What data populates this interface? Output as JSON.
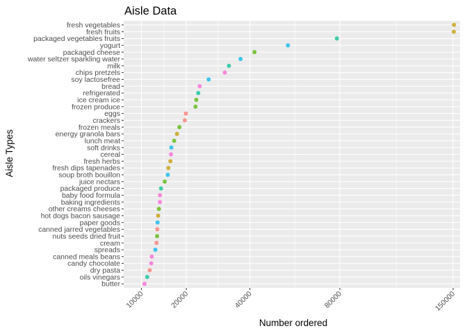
{
  "chart_data": {
    "type": "scatter",
    "title": "Aisle Data",
    "xlabel": "Number ordered",
    "ylabel": "Aisle Types",
    "x_scale": "sqrt",
    "x_ticks": [
      10000,
      20000,
      40000,
      80000,
      150000
    ],
    "xlim": [
      7000,
      155000
    ],
    "grid": true,
    "legend": "none",
    "points": [
      {
        "aisle": "fresh vegetables",
        "value": 150609,
        "color": "#C49A00"
      },
      {
        "aisle": "fresh fruits",
        "value": 150473,
        "color": "#C49A00"
      },
      {
        "aisle": "packaged vegetables fruits",
        "value": 78493,
        "color": "#00C094"
      },
      {
        "aisle": "yogurt",
        "value": 55240,
        "color": "#00B6EB"
      },
      {
        "aisle": "packaged cheese",
        "value": 41699,
        "color": "#53B400"
      },
      {
        "aisle": "water seltzer sparkling water",
        "value": 36617,
        "color": "#00B6EB"
      },
      {
        "aisle": "milk",
        "value": 32644,
        "color": "#00C094"
      },
      {
        "aisle": "chips pretzels",
        "value": 31269,
        "color": "#FB61D7"
      },
      {
        "aisle": "soy lactosefree",
        "value": 26240,
        "color": "#00B6EB"
      },
      {
        "aisle": "bread",
        "value": 23635,
        "color": "#FB61D7"
      },
      {
        "aisle": "refrigerated",
        "value": 23228,
        "color": "#00C094"
      },
      {
        "aisle": "ice cream ice",
        "value": 22676,
        "color": "#53B400"
      },
      {
        "aisle": "frozen produce",
        "value": 22453,
        "color": "#53B400"
      },
      {
        "aisle": "eggs",
        "value": 19875,
        "color": "#F8766D"
      },
      {
        "aisle": "crackers",
        "value": 19592,
        "color": "#F8766D"
      },
      {
        "aisle": "frozen meals",
        "value": 18221,
        "color": "#53B400"
      },
      {
        "aisle": "energy granola bars",
        "value": 17632,
        "color": "#C49A00"
      },
      {
        "aisle": "lunch meat",
        "value": 16957,
        "color": "#53B400"
      },
      {
        "aisle": "soft drinks",
        "value": 16279,
        "color": "#00B6EB"
      },
      {
        "aisle": "cereal",
        "value": 16201,
        "color": "#FB61D7"
      },
      {
        "aisle": "fresh herbs",
        "value": 16052,
        "color": "#C49A00"
      },
      {
        "aisle": "fresh dips tapenades",
        "value": 15591,
        "color": "#C49A00"
      },
      {
        "aisle": "soup broth bouillon",
        "value": 15455,
        "color": "#00B6EB"
      },
      {
        "aisle": "juice nectars",
        "value": 14755,
        "color": "#53B400"
      },
      {
        "aisle": "packaged produce",
        "value": 13942,
        "color": "#00C094"
      },
      {
        "aisle": "baby food formula",
        "value": 13715,
        "color": "#FB61D7"
      },
      {
        "aisle": "baking ingredients",
        "value": 13696,
        "color": "#FB61D7"
      },
      {
        "aisle": "other creams cheeses",
        "value": 13487,
        "color": "#53B400"
      },
      {
        "aisle": "hot dogs bacon sausage",
        "value": 13328,
        "color": "#C49A00"
      },
      {
        "aisle": "paper goods",
        "value": 13194,
        "color": "#00B6EB"
      },
      {
        "aisle": "canned jarred vegetables",
        "value": 13138,
        "color": "#F8766D"
      },
      {
        "aisle": "nuts seeds dried fruit",
        "value": 13098,
        "color": "#53B400"
      },
      {
        "aisle": "cream",
        "value": 12975,
        "color": "#F8766D"
      },
      {
        "aisle": "spreads",
        "value": 12734,
        "color": "#00B6EB"
      },
      {
        "aisle": "canned meals beans",
        "value": 12004,
        "color": "#FB61D7"
      },
      {
        "aisle": "candy chocolate",
        "value": 11895,
        "color": "#FB61D7"
      },
      {
        "aisle": "dry pasta",
        "value": 11584,
        "color": "#F8766D"
      },
      {
        "aisle": "oils vinegars",
        "value": 11092,
        "color": "#00C094"
      },
      {
        "aisle": "butter",
        "value": 10575,
        "color": "#FB61D7"
      }
    ]
  }
}
